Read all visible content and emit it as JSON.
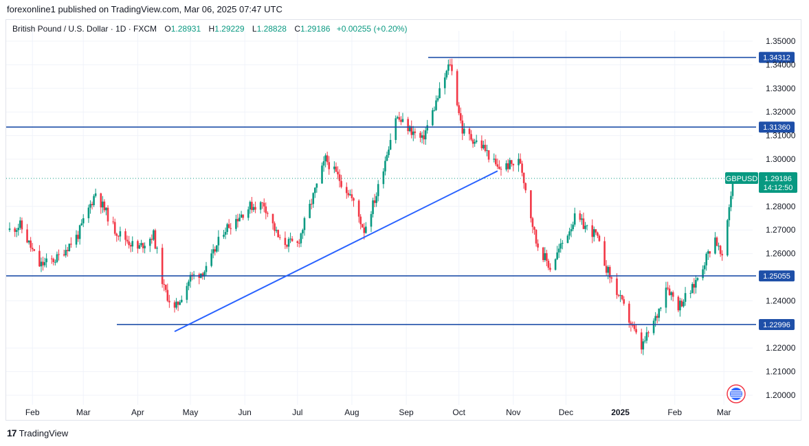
{
  "publish_line": "forexonline1 published on TradingView.com, Mar 06, 2025 07:47 UTC",
  "legend": {
    "symbol": "British Pound / U.S. Dollar · 1D · FXCM",
    "open_label": "O",
    "open": "1.28931",
    "high_label": "H",
    "high": "1.29229",
    "low_label": "L",
    "low": "1.28828",
    "close_label": "C",
    "close": "1.29186",
    "change": "+0.00255 (+0.20%)"
  },
  "footer": {
    "brand": "TradingView",
    "logo_text": "17"
  },
  "colors": {
    "up": "#089981",
    "down": "#f23645",
    "line": "#2962ff",
    "hline": "#1e4fa8",
    "grid": "#f0f3fa",
    "axis_text": "#131722"
  },
  "chart_data": {
    "type": "candlestick",
    "symbol": "GBPUSD",
    "ylim": [
      1.195,
      1.355
    ],
    "y_ticks": [
      "1.35000",
      "1.34000",
      "1.33000",
      "1.32000",
      "1.31000",
      "1.30000",
      "1.28000",
      "1.27000",
      "1.26000",
      "1.24000",
      "1.22000",
      "1.21000",
      "1.20000"
    ],
    "x_ticks": [
      {
        "label": "Feb",
        "bold": false
      },
      {
        "label": "Mar",
        "bold": false
      },
      {
        "label": "Apr",
        "bold": false
      },
      {
        "label": "May",
        "bold": false
      },
      {
        "label": "Jun",
        "bold": false
      },
      {
        "label": "Jul",
        "bold": false
      },
      {
        "label": "Aug",
        "bold": false
      },
      {
        "label": "Sep",
        "bold": false
      },
      {
        "label": "Oct",
        "bold": false
      },
      {
        "label": "Nov",
        "bold": false
      },
      {
        "label": "Dec",
        "bold": false
      },
      {
        "label": "2025",
        "bold": true
      },
      {
        "label": "Feb",
        "bold": false
      },
      {
        "label": "Mar",
        "bold": false
      }
    ],
    "horizontal_levels": [
      {
        "value": 1.34312,
        "label": "1.34312"
      },
      {
        "value": 1.3136,
        "label": "1.31360"
      },
      {
        "value": 1.25055,
        "label": "1.25055"
      },
      {
        "value": 1.22996,
        "label": "1.22996"
      }
    ],
    "trendline": {
      "from": [
        1.227,
        "Apr 22, 2024"
      ],
      "to": [
        1.295,
        "Oct 23, 2024"
      ]
    },
    "current_price": {
      "symbol_label": "GBPUSD",
      "price": "1.29186",
      "countdown": "14:12:50",
      "value": 1.29186
    },
    "anchors": [
      [
        "Jan 19, 2024",
        1.27
      ],
      [
        "Jan 25, 2024",
        1.272
      ],
      [
        "Feb 05, 2024",
        1.255
      ],
      [
        "Feb 15, 2024",
        1.258
      ],
      [
        "Feb 27, 2024",
        1.268
      ],
      [
        "Mar 08, 2024",
        1.286
      ],
      [
        "Mar 19, 2024",
        1.27
      ],
      [
        "Apr 01, 2024",
        1.262
      ],
      [
        "Apr 10, 2024",
        1.268
      ],
      [
        "Apr 16, 2024",
        1.245
      ],
      [
        "Apr 22, 2024",
        1.236
      ],
      [
        "May 01, 2024",
        1.25
      ],
      [
        "May 10, 2024",
        1.253
      ],
      [
        "May 20, 2024",
        1.27
      ],
      [
        "Jun 04, 2024",
        1.28
      ],
      [
        "Jun 12, 2024",
        1.281
      ],
      [
        "Jun 21, 2024",
        1.265
      ],
      [
        "Jul 01, 2024",
        1.264
      ],
      [
        "Jul 17, 2024",
        1.3
      ],
      [
        "Jul 31, 2024",
        1.285
      ],
      [
        "Aug 08, 2024",
        1.27
      ],
      [
        "Aug 15, 2024",
        1.285
      ],
      [
        "Aug 26, 2024",
        1.318
      ],
      [
        "Sep 10, 2024",
        1.308
      ],
      [
        "Sep 17, 2024",
        1.322
      ],
      [
        "Sep 26, 2024",
        1.341
      ],
      [
        "Oct 03, 2024",
        1.312
      ],
      [
        "Oct 15, 2024",
        1.305
      ],
      [
        "Oct 23, 2024",
        1.296
      ],
      [
        "Nov 05, 2024",
        1.299
      ],
      [
        "Nov 14, 2024",
        1.265
      ],
      [
        "Nov 22, 2024",
        1.254
      ],
      [
        "Dec 06, 2024",
        1.275
      ],
      [
        "Dec 18, 2024",
        1.268
      ],
      [
        "Dec 24, 2024",
        1.254
      ],
      [
        "Jan 13, 2025",
        1.22
      ],
      [
        "Jan 22, 2025",
        1.234
      ],
      [
        "Jan 27, 2025",
        1.247
      ],
      [
        "Feb 03, 2025",
        1.238
      ],
      [
        "Feb 11, 2025",
        1.245
      ],
      [
        "Feb 24, 2025",
        1.267
      ],
      [
        "Feb 28, 2025",
        1.257
      ],
      [
        "Mar 04, 2025",
        1.28
      ],
      [
        "Mar 06, 2025",
        1.291
      ]
    ]
  }
}
